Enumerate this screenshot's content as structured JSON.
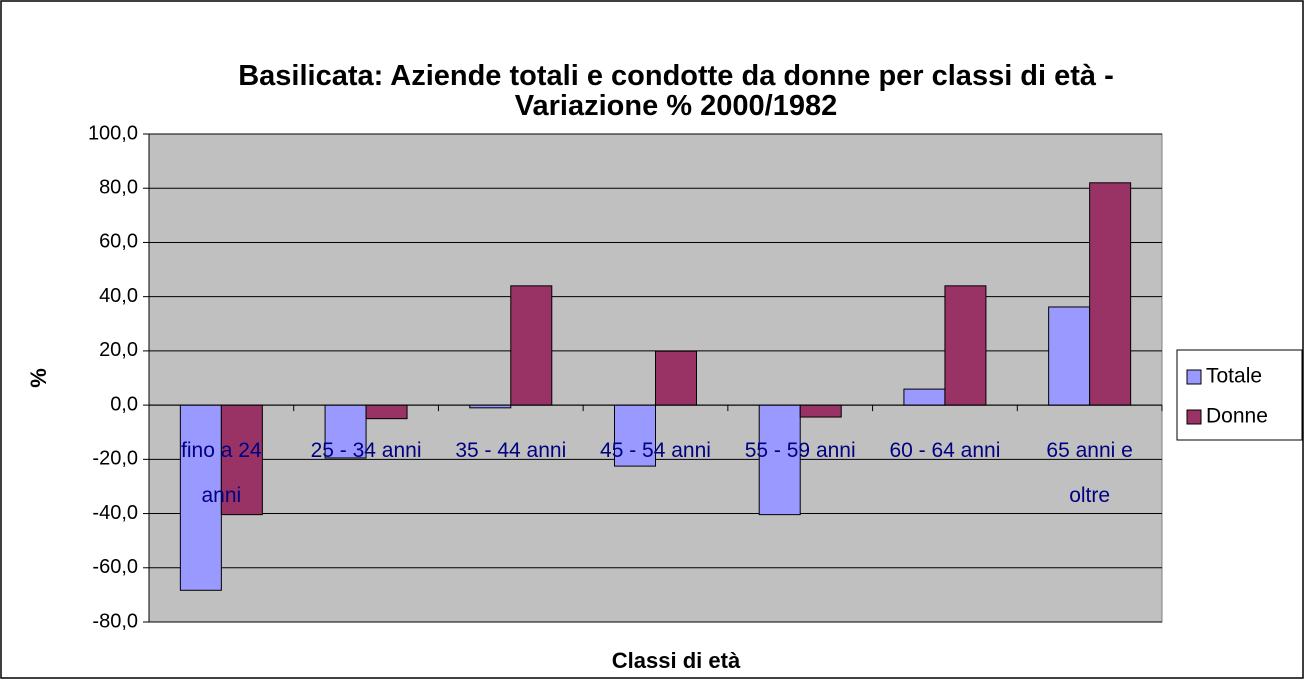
{
  "chart_data": {
    "type": "bar",
    "title": "Basilicata: Aziende totali e condotte da donne per classi di età - Variazione % 2000/1982",
    "x_label": "Classi di età",
    "y_label": "%",
    "categories": [
      "fino a 24 anni",
      "25 - 34 anni",
      "35 - 44 anni",
      "45 - 54 anni",
      "55 - 59 anni",
      "60 - 64 anni",
      "65 anni e oltre"
    ],
    "series": [
      {
        "name": "Totale",
        "color": "#9999ff",
        "values": [
          -68.3,
          -19.5,
          -1.0,
          -22.5,
          -40.4,
          5.9,
          36.2
        ]
      },
      {
        "name": "Donne",
        "color": "#993366",
        "values": [
          -40.4,
          -5.0,
          44.0,
          19.9,
          -4.4,
          44.0,
          82.0
        ]
      }
    ],
    "ylim": [
      -80,
      100
    ],
    "yticks": [
      {
        "value": -80,
        "label": "-80,0"
      },
      {
        "value": -60,
        "label": "-60,0"
      },
      {
        "value": -40,
        "label": "-40,0"
      },
      {
        "value": -20,
        "label": "-20,0"
      },
      {
        "value": 0,
        "label": "0,0"
      },
      {
        "value": 20,
        "label": "20,0"
      },
      {
        "value": 40,
        "label": "40,0"
      },
      {
        "value": 60,
        "label": "60,0"
      },
      {
        "value": 80,
        "label": "80,0"
      },
      {
        "value": 100,
        "label": "100,0"
      }
    ],
    "grid": true,
    "legend": "right"
  }
}
